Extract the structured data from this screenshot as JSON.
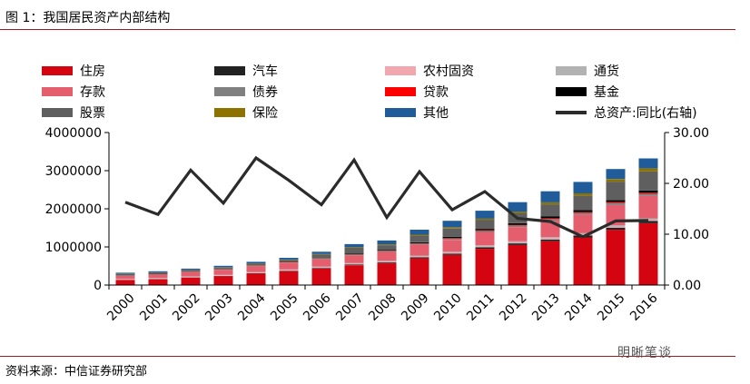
{
  "figure": {
    "title": "图 1：我国居民资产内部结构",
    "source": "资料来源：中信证券研究部",
    "watermark": "明晰笔谈"
  },
  "chart_data": {
    "type": "bar",
    "stacked": true,
    "categories": [
      "2000",
      "2001",
      "2002",
      "2003",
      "2004",
      "2005",
      "2006",
      "2007",
      "2008",
      "2009",
      "2010",
      "2011",
      "2012",
      "2013",
      "2014",
      "2015",
      "2016"
    ],
    "ylim": [
      0,
      4000000
    ],
    "y_ticks": [
      "0",
      "1000000",
      "2000000",
      "3000000",
      "4000000"
    ],
    "y2lim": [
      0,
      30
    ],
    "y2_ticks": [
      "0.00",
      "10.00",
      "20.00",
      "30.00"
    ],
    "legend_position": "top",
    "grid": false,
    "series": [
      {
        "name": "住房",
        "color": "#d40511",
        "values": [
          130000,
          150000,
          190000,
          230000,
          300000,
          360000,
          430000,
          520000,
          570000,
          700000,
          790000,
          950000,
          1050000,
          1150000,
          1250000,
          1450000,
          1620000
        ]
      },
      {
        "name": "汽车",
        "color": "#222222",
        "values": [
          5000,
          6000,
          8000,
          10000,
          12000,
          14000,
          17000,
          20000,
          23000,
          28000,
          33000,
          38000,
          42000,
          46000,
          50000,
          55000,
          60000
        ]
      },
      {
        "name": "农村固资",
        "color": "#f2a6ad",
        "values": [
          15000,
          16000,
          17000,
          18000,
          19000,
          20000,
          21000,
          22000,
          23000,
          24000,
          25000,
          26000,
          27000,
          28000,
          29000,
          30000,
          31000
        ]
      },
      {
        "name": "通货",
        "color": "#b2b2b2",
        "values": [
          10000,
          11000,
          12000,
          13000,
          14000,
          15000,
          16000,
          18000,
          20000,
          23000,
          26000,
          29000,
          31000,
          33000,
          35000,
          37000,
          40000
        ]
      },
      {
        "name": "存款",
        "color": "#e55e6e",
        "values": [
          80000,
          90000,
          110000,
          130000,
          150000,
          170000,
          190000,
          190000,
          230000,
          280000,
          310000,
          340000,
          370000,
          430000,
          480000,
          530000,
          590000
        ]
      },
      {
        "name": "债券",
        "color": "#808080",
        "values": [
          10000,
          12000,
          14000,
          16000,
          18000,
          20000,
          22000,
          25000,
          28000,
          31000,
          34000,
          37000,
          40000,
          43000,
          46000,
          49000,
          52000
        ]
      },
      {
        "name": "贷款",
        "color": "#ff0000",
        "values": [
          5000,
          5000,
          6000,
          7000,
          8000,
          9000,
          10000,
          11000,
          12000,
          14000,
          16000,
          18000,
          20000,
          22000,
          24000,
          26000,
          28000
        ]
      },
      {
        "name": "基金",
        "color": "#000000",
        "values": [
          5000,
          6000,
          7000,
          8000,
          9000,
          10000,
          15000,
          20000,
          20000,
          25000,
          30000,
          35000,
          40000,
          45000,
          50000,
          55000,
          60000
        ]
      },
      {
        "name": "股票",
        "color": "#5f5f5f",
        "values": [
          40000,
          35000,
          30000,
          30000,
          30000,
          40000,
          80000,
          150000,
          120000,
          170000,
          220000,
          230000,
          260000,
          320000,
          380000,
          480000,
          500000
        ]
      },
      {
        "name": "保险",
        "color": "#8e7200",
        "values": [
          5000,
          6000,
          7000,
          8000,
          9000,
          11000,
          14000,
          18000,
          22000,
          27000,
          32000,
          38000,
          45000,
          52000,
          60000,
          70000,
          80000
        ]
      },
      {
        "name": "其他",
        "color": "#1f5c99",
        "values": [
          20000,
          25000,
          30000,
          35000,
          40000,
          45000,
          60000,
          80000,
          100000,
          130000,
          170000,
          210000,
          250000,
          290000,
          300000,
          260000,
          260000
        ]
      }
    ],
    "line_series": {
      "name": "总资产:同比(右轴)",
      "color": "#2b2b2b",
      "axis": "right",
      "values": [
        16.3,
        13.9,
        22.6,
        16.1,
        25.0,
        20.6,
        15.8,
        24.6,
        13.3,
        22.3,
        14.8,
        18.4,
        13.1,
        12.5,
        9.5,
        12.6,
        12.7
      ]
    }
  }
}
